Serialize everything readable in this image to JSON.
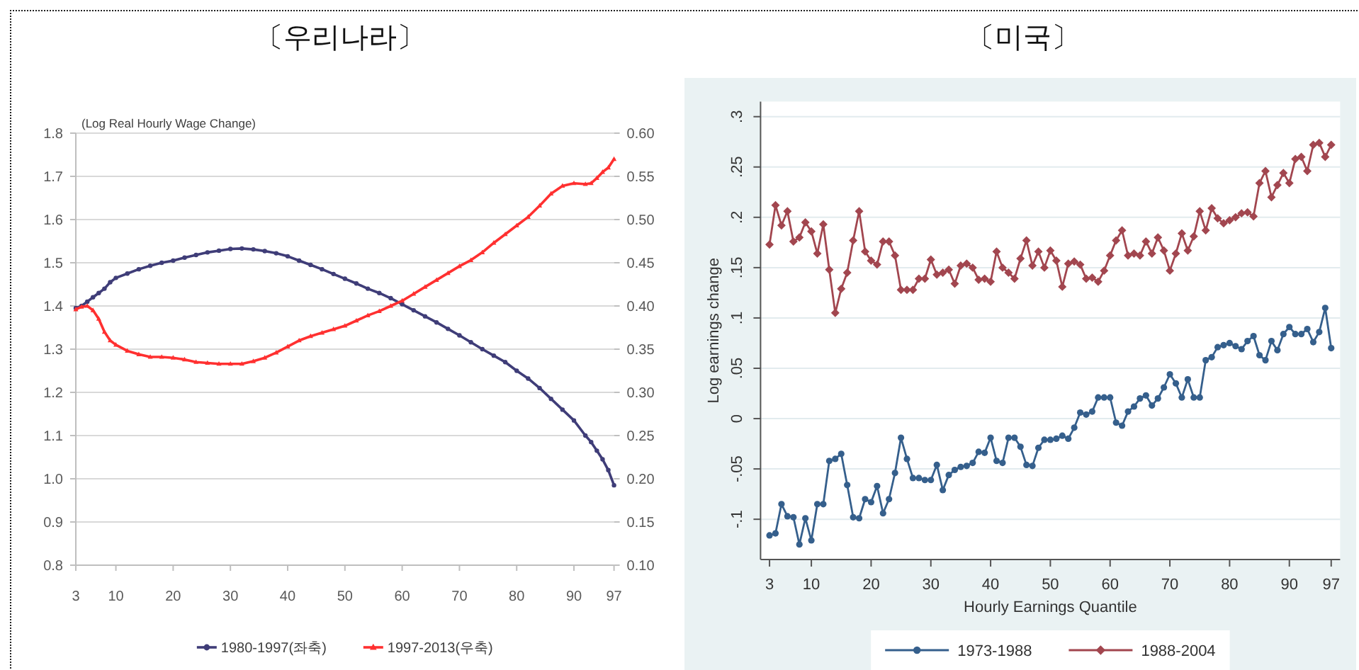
{
  "chart_data": [
    {
      "type": "line",
      "title": "〔우리나라〕",
      "ylabel": "(Log Real Hourly Wage Change)",
      "x": [
        3,
        4,
        5,
        6,
        7,
        8,
        9,
        10,
        12,
        14,
        16,
        18,
        20,
        22,
        24,
        26,
        28,
        30,
        32,
        34,
        36,
        38,
        40,
        42,
        44,
        46,
        48,
        50,
        52,
        54,
        56,
        58,
        60,
        62,
        64,
        66,
        68,
        70,
        72,
        74,
        76,
        78,
        80,
        82,
        84,
        86,
        88,
        90,
        92,
        93,
        94,
        95,
        96,
        97
      ],
      "xlim": [
        3,
        97
      ],
      "xticks": [
        3,
        10,
        20,
        30,
        40,
        50,
        60,
        70,
        80,
        90,
        97
      ],
      "ylim": [
        0.8,
        1.8
      ],
      "yticks": [
        0.8,
        0.9,
        {
          "value": 1,
          "label": "1.0"
        },
        1.1,
        1.2,
        1.3,
        1.4,
        1.5,
        1.6,
        1.7,
        1.8
      ],
      "y2lim": [
        0.1,
        0.6
      ],
      "y2ticks": [
        {
          "value": 0.1,
          "label": "0.10"
        },
        0.15,
        {
          "value": 0.2,
          "label": "0.20"
        },
        0.25,
        {
          "value": 0.3,
          "label": "0.30"
        },
        0.35,
        {
          "value": 0.4,
          "label": "0.40"
        },
        0.45,
        {
          "value": 0.5,
          "label": "0.50"
        },
        0.55,
        {
          "value": 0.6,
          "label": "0.60"
        }
      ],
      "grid": "y",
      "legend": "bottom",
      "series": [
        {
          "name": "1980-1997(좌축)",
          "color": "#3f3d78",
          "marker": "circle",
          "axis": "y",
          "values": [
            1.395,
            1.4,
            1.41,
            1.42,
            1.43,
            1.44,
            1.455,
            1.465,
            1.475,
            1.485,
            1.493,
            1.5,
            1.505,
            1.512,
            1.518,
            1.524,
            1.528,
            1.532,
            1.533,
            1.531,
            1.527,
            1.522,
            1.515,
            1.505,
            1.495,
            1.485,
            1.474,
            1.463,
            1.452,
            1.44,
            1.43,
            1.418,
            1.404,
            1.39,
            1.376,
            1.362,
            1.347,
            1.332,
            1.316,
            1.3,
            1.285,
            1.27,
            1.25,
            1.232,
            1.21,
            1.185,
            1.16,
            1.135,
            1.1,
            1.085,
            1.065,
            1.045,
            1.02,
            0.985
          ]
        },
        {
          "name": "1997-2013(우축)",
          "color": "#ff3030",
          "marker": "triangle",
          "axis": "y2",
          "values": [
            0.396,
            0.399,
            0.4,
            0.395,
            0.385,
            0.37,
            0.36,
            0.355,
            0.348,
            0.344,
            0.341,
            0.341,
            0.34,
            0.338,
            0.335,
            0.334,
            0.333,
            0.333,
            0.333,
            0.336,
            0.34,
            0.346,
            0.353,
            0.36,
            0.365,
            0.369,
            0.373,
            0.377,
            0.383,
            0.389,
            0.394,
            0.4,
            0.406,
            0.414,
            0.422,
            0.43,
            0.438,
            0.446,
            0.453,
            0.462,
            0.473,
            0.483,
            0.493,
            0.503,
            0.516,
            0.53,
            0.539,
            0.542,
            0.541,
            0.542,
            0.548,
            0.555,
            0.56,
            0.57
          ]
        }
      ]
    },
    {
      "type": "line",
      "title": "〔미국〕",
      "xlabel": "Hourly Earnings Quantile",
      "ylabel": "Log earnings change",
      "x": [
        3,
        4,
        5,
        6,
        7,
        8,
        9,
        10,
        11,
        12,
        13,
        14,
        15,
        16,
        17,
        18,
        19,
        20,
        21,
        22,
        23,
        24,
        25,
        26,
        27,
        28,
        29,
        30,
        31,
        32,
        33,
        34,
        35,
        36,
        37,
        38,
        39,
        40,
        41,
        42,
        43,
        44,
        45,
        46,
        47,
        48,
        49,
        50,
        51,
        52,
        53,
        54,
        55,
        56,
        57,
        58,
        59,
        60,
        61,
        62,
        63,
        64,
        65,
        66,
        67,
        68,
        69,
        70,
        71,
        72,
        73,
        74,
        75,
        76,
        77,
        78,
        79,
        80,
        81,
        82,
        83,
        84,
        85,
        86,
        87,
        88,
        89,
        90,
        91,
        92,
        93,
        94,
        95,
        96,
        97
      ],
      "xlim": [
        1.5,
        98.5
      ],
      "xticks": [
        3,
        10,
        20,
        30,
        40,
        50,
        60,
        70,
        80,
        90,
        97
      ],
      "ylim": [
        -0.14,
        0.315
      ],
      "yticks": [
        {
          "value": -0.1,
          "label": "-.1"
        },
        {
          "value": -0.05,
          "label": "-.05"
        },
        0,
        {
          "value": 0.05,
          "label": ".05"
        },
        {
          "value": 0.1,
          "label": ".1"
        },
        {
          "value": 0.15,
          "label": ".15"
        },
        {
          "value": 0.2,
          "label": ".2"
        },
        {
          "value": 0.25,
          "label": ".25"
        },
        {
          "value": 0.3,
          "label": ".3"
        }
      ],
      "grid": "y",
      "legend": "bottom",
      "series": [
        {
          "name": "1973-1988",
          "color": "#355f8c",
          "marker": "circle",
          "values": [
            -0.116,
            -0.114,
            -0.085,
            -0.097,
            -0.098,
            -0.125,
            -0.099,
            -0.121,
            -0.085,
            -0.085,
            -0.042,
            -0.04,
            -0.035,
            -0.066,
            -0.098,
            -0.099,
            -0.08,
            -0.083,
            -0.067,
            -0.094,
            -0.08,
            -0.054,
            -0.019,
            -0.04,
            -0.059,
            -0.059,
            -0.061,
            -0.061,
            -0.046,
            -0.071,
            -0.056,
            -0.051,
            -0.048,
            -0.047,
            -0.044,
            -0.033,
            -0.034,
            -0.019,
            -0.042,
            -0.044,
            -0.019,
            -0.019,
            -0.028,
            -0.046,
            -0.047,
            -0.029,
            -0.021,
            -0.021,
            -0.02,
            -0.017,
            -0.02,
            -0.009,
            0.006,
            0.004,
            0.007,
            0.021,
            0.021,
            0.021,
            -0.004,
            -0.007,
            0.007,
            0.012,
            0.02,
            0.023,
            0.013,
            0.02,
            0.031,
            0.044,
            0.035,
            0.021,
            0.039,
            0.021,
            0.021,
            0.058,
            0.061,
            0.071,
            0.073,
            0.075,
            0.072,
            0.069,
            0.077,
            0.082,
            0.063,
            0.058,
            0.077,
            0.068,
            0.084,
            0.091,
            0.084,
            0.084,
            0.089,
            0.076,
            0.086,
            0.11,
            0.07
          ]
        },
        {
          "name": "1988-2004",
          "color": "#a2464f",
          "marker": "diamond",
          "values": [
            0.173,
            0.212,
            0.192,
            0.206,
            0.176,
            0.18,
            0.195,
            0.186,
            0.164,
            0.193,
            0.148,
            0.105,
            0.129,
            0.145,
            0.177,
            0.206,
            0.166,
            0.157,
            0.153,
            0.176,
            0.176,
            0.162,
            0.128,
            0.128,
            0.128,
            0.139,
            0.139,
            0.158,
            0.143,
            0.145,
            0.148,
            0.134,
            0.152,
            0.154,
            0.15,
            0.138,
            0.139,
            0.136,
            0.166,
            0.15,
            0.145,
            0.139,
            0.159,
            0.177,
            0.152,
            0.166,
            0.15,
            0.167,
            0.157,
            0.131,
            0.154,
            0.156,
            0.153,
            0.139,
            0.14,
            0.136,
            0.147,
            0.162,
            0.177,
            0.187,
            0.162,
            0.164,
            0.162,
            0.176,
            0.164,
            0.18,
            0.167,
            0.147,
            0.164,
            0.184,
            0.167,
            0.181,
            0.206,
            0.187,
            0.209,
            0.199,
            0.194,
            0.197,
            0.2,
            0.204,
            0.205,
            0.201,
            0.234,
            0.246,
            0.22,
            0.232,
            0.244,
            0.234,
            0.258,
            0.26,
            0.246,
            0.272,
            0.274,
            0.26,
            0.272
          ]
        }
      ]
    }
  ]
}
